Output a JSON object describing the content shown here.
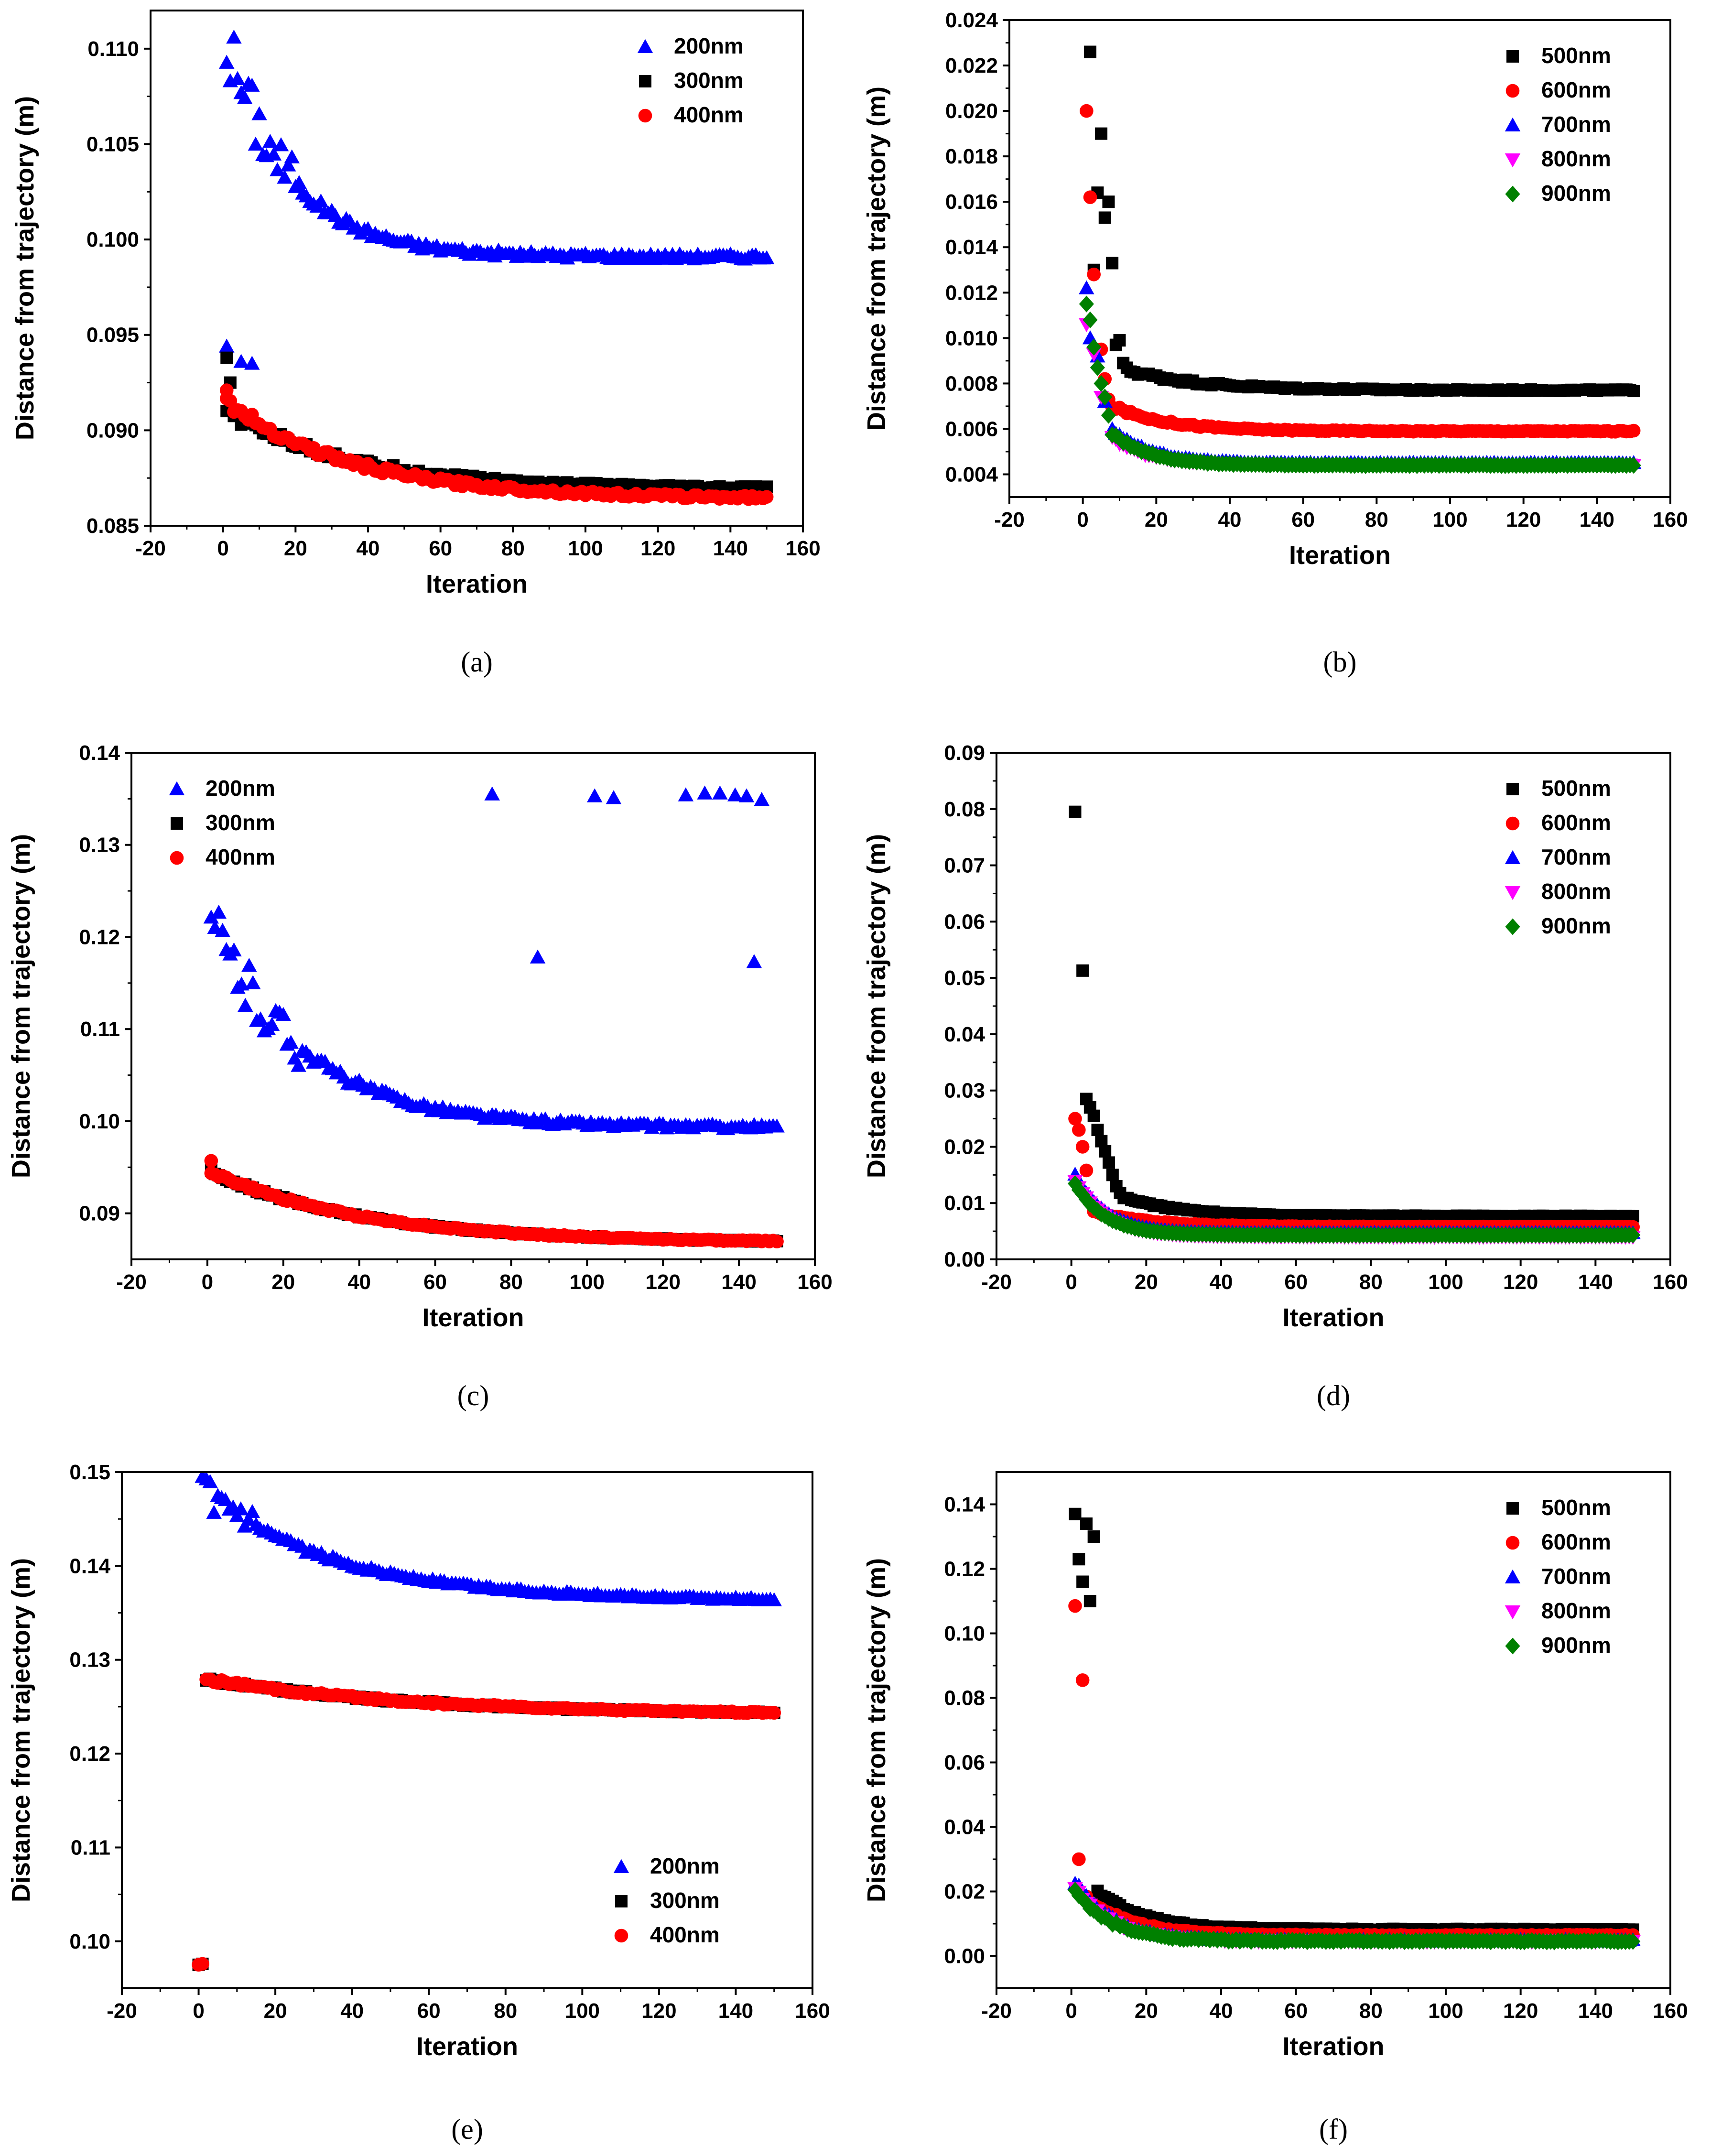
{
  "chart_data": [
    {
      "id": "a",
      "type": "scatter",
      "caption": "(a)",
      "xlabel": "Iteration",
      "ylabel": "Distance from trajectory (m)",
      "xlim": [
        -20,
        160
      ],
      "ylim": [
        0.085,
        0.112
      ],
      "xticks": [
        -20,
        0,
        20,
        40,
        60,
        80,
        100,
        120,
        140,
        160
      ],
      "yticks": [
        0.085,
        0.09,
        0.095,
        0.1,
        0.105,
        0.11
      ],
      "ytick_decimals": 3,
      "legend_position": "top-right",
      "series": [
        {
          "name": "200nm",
          "color": "#0000ff",
          "marker": "triangle-up",
          "curve": {
            "start": 0.1103,
            "end": 0.0991,
            "tau": 18,
            "jitter": 0.00035,
            "spike_until": 20
          },
          "extra_points": [
            [
              1,
              0.0944
            ],
            [
              5,
              0.0936
            ],
            [
              8,
              0.0935
            ]
          ]
        },
        {
          "name": "300nm",
          "color": "#000000",
          "marker": "square",
          "curve": {
            "start": 0.091,
            "end": 0.0869,
            "tau": 35,
            "jitter": 0.0002
          },
          "extra_points": [
            [
              1,
              0.0938
            ],
            [
              2,
              0.0925
            ]
          ]
        },
        {
          "name": "400nm",
          "color": "#ff0000",
          "marker": "circle",
          "curve": {
            "start": 0.0915,
            "end": 0.0864,
            "tau": 35,
            "jitter": 0.0002
          },
          "extra_points": [
            [
              1,
              0.0921
            ]
          ]
        }
      ]
    },
    {
      "id": "b",
      "type": "scatter",
      "caption": "(b)",
      "xlabel": "Iteration",
      "ylabel": "Distance from trajectory (m)",
      "xlim": [
        -20,
        160
      ],
      "ylim": [
        0.003,
        0.024
      ],
      "xticks": [
        -20,
        0,
        20,
        40,
        60,
        80,
        100,
        120,
        140,
        160
      ],
      "yticks": [
        0.004,
        0.006,
        0.008,
        0.01,
        0.012,
        0.014,
        0.016,
        0.018,
        0.02,
        0.022,
        0.024
      ],
      "ytick_decimals": 3,
      "legend_position": "top-right",
      "series": [
        {
          "name": "500nm",
          "color": "#000000",
          "marker": "square",
          "curve": {
            "start": 0.0086,
            "end": 0.0077,
            "tau": 20,
            "jitter": 8e-05,
            "from": 12
          },
          "extra_points": [
            [
              2,
              0.0226
            ],
            [
              3,
              0.013
            ],
            [
              4,
              0.0164
            ],
            [
              5,
              0.019
            ],
            [
              6,
              0.0153
            ],
            [
              7,
              0.016
            ],
            [
              8,
              0.0133
            ],
            [
              9,
              0.0097
            ],
            [
              10,
              0.0099
            ],
            [
              11,
              0.0089
            ]
          ]
        },
        {
          "name": "600nm",
          "color": "#ff0000",
          "marker": "circle",
          "curve": {
            "start": 0.007,
            "end": 0.0059,
            "tau": 15,
            "jitter": 6e-05,
            "from": 8
          },
          "extra_points": [
            [
              1,
              0.02
            ],
            [
              2,
              0.0162
            ],
            [
              3,
              0.0128
            ],
            [
              5,
              0.0095
            ],
            [
              6,
              0.0082
            ],
            [
              7,
              0.0073
            ]
          ]
        },
        {
          "name": "700nm",
          "color": "#0000ff",
          "marker": "triangle-up",
          "curve": {
            "start": 0.006,
            "end": 0.0045,
            "tau": 10,
            "jitter": 5e-05,
            "from": 8
          },
          "extra_points": [
            [
              1,
              0.0122
            ],
            [
              2,
              0.01
            ],
            [
              4,
              0.0092
            ],
            [
              6,
              0.0072
            ]
          ]
        },
        {
          "name": "800nm",
          "color": "#ff00ff",
          "marker": "triangle-down",
          "curve": {
            "start": 0.0056,
            "end": 0.0044,
            "tau": 10,
            "jitter": 5e-05,
            "from": 8
          },
          "extra_points": [
            [
              1,
              0.0106
            ],
            [
              3,
              0.0093
            ],
            [
              5,
              0.0074
            ]
          ]
        },
        {
          "name": "900nm",
          "color": "#008000",
          "marker": "diamond",
          "curve": {
            "start": 0.0058,
            "end": 0.0044,
            "tau": 10,
            "jitter": 5e-05,
            "from": 8
          },
          "extra_points": [
            [
              1,
              0.0115
            ],
            [
              2,
              0.0108
            ],
            [
              3,
              0.0096
            ],
            [
              4,
              0.0087
            ],
            [
              5,
              0.008
            ],
            [
              6,
              0.0074
            ],
            [
              7,
              0.0066
            ]
          ]
        }
      ]
    },
    {
      "id": "c",
      "type": "scatter",
      "caption": "(c)",
      "xlabel": "Iteration",
      "ylabel": "Distance from trajectory (m)",
      "xlim": [
        -20,
        160
      ],
      "ylim": [
        0.085,
        0.14
      ],
      "xticks": [
        -20,
        0,
        20,
        40,
        60,
        80,
        100,
        120,
        140,
        160
      ],
      "yticks": [
        0.09,
        0.1,
        0.11,
        0.12,
        0.13,
        0.14
      ],
      "ytick_decimals": 2,
      "legend_position": "top-left",
      "series": [
        {
          "name": "200nm",
          "color": "#0000ff",
          "marker": "triangle-up",
          "curve": {
            "start": 0.1215,
            "end": 0.0993,
            "tau": 25,
            "jitter": 0.0006,
            "spike_until": 25
          },
          "extra_points": [
            [
              75,
              0.1355
            ],
            [
              87,
              0.1178
            ],
            [
              102,
              0.1353
            ],
            [
              107,
              0.1351
            ],
            [
              126,
              0.1354
            ],
            [
              131,
              0.1356
            ],
            [
              135,
              0.1356
            ],
            [
              139,
              0.1354
            ],
            [
              142,
              0.1353
            ],
            [
              144,
              0.1173
            ],
            [
              146,
              0.1349
            ]
          ]
        },
        {
          "name": "300nm",
          "color": "#000000",
          "marker": "square",
          "curve": {
            "start": 0.0945,
            "end": 0.0868,
            "tau": 40,
            "jitter": 0.00015
          }
        },
        {
          "name": "400nm",
          "color": "#ff0000",
          "marker": "circle",
          "curve": {
            "start": 0.0945,
            "end": 0.0868,
            "tau": 40,
            "jitter": 0.00015
          },
          "extra_points": [
            [
              1,
              0.0957
            ]
          ]
        }
      ]
    },
    {
      "id": "d",
      "type": "scatter",
      "caption": "(d)",
      "xlabel": "Iteration",
      "ylabel": "Distance from trajectory (m)",
      "xlim": [
        -20,
        160
      ],
      "ylim": [
        0,
        0.09
      ],
      "xticks": [
        -20,
        0,
        20,
        40,
        60,
        80,
        100,
        120,
        140,
        160
      ],
      "yticks": [
        0.0,
        0.01,
        0.02,
        0.03,
        0.04,
        0.05,
        0.06,
        0.07,
        0.08,
        0.09
      ],
      "ytick_decimals": 2,
      "legend_position": "top-right",
      "series": [
        {
          "name": "500nm",
          "color": "#000000",
          "marker": "square",
          "curve": {
            "start": 0.011,
            "end": 0.0077,
            "tau": 15,
            "jitter": 0.00015,
            "from": 14
          },
          "extra_points": [
            [
              1,
              0.0795
            ],
            [
              3,
              0.0513
            ],
            [
              4,
              0.0285
            ],
            [
              5,
              0.027
            ],
            [
              6,
              0.0255
            ],
            [
              7,
              0.023
            ],
            [
              8,
              0.021
            ],
            [
              9,
              0.0192
            ],
            [
              10,
              0.0172
            ],
            [
              11,
              0.015
            ],
            [
              12,
              0.013
            ],
            [
              13,
              0.0118
            ]
          ]
        },
        {
          "name": "600nm",
          "color": "#ff0000",
          "marker": "circle",
          "curve": {
            "start": 0.0085,
            "end": 0.0058,
            "tau": 15,
            "jitter": 0.0001,
            "from": 6
          },
          "extra_points": [
            [
              1,
              0.025
            ],
            [
              2,
              0.023
            ],
            [
              3,
              0.02
            ],
            [
              4,
              0.0158
            ]
          ]
        },
        {
          "name": "700nm",
          "color": "#0000ff",
          "marker": "triangle-up",
          "curve": {
            "start": 0.015,
            "end": 0.0047,
            "tau": 8,
            "jitter": 0.0001
          }
        },
        {
          "name": "800nm",
          "color": "#ff00ff",
          "marker": "triangle-down",
          "curve": {
            "start": 0.014,
            "end": 0.004,
            "tau": 8,
            "jitter": 0.0001
          }
        },
        {
          "name": "900nm",
          "color": "#008000",
          "marker": "diamond",
          "curve": {
            "start": 0.0135,
            "end": 0.0043,
            "tau": 8,
            "jitter": 0.0001
          }
        }
      ]
    },
    {
      "id": "e",
      "type": "scatter",
      "caption": "(e)",
      "xlabel": "Iteration",
      "ylabel": "Distance from trajectory (m)",
      "xlim": [
        -20,
        160
      ],
      "ylim": [
        0.095,
        0.15
      ],
      "xticks": [
        -20,
        0,
        20,
        40,
        60,
        80,
        100,
        120,
        140,
        160
      ],
      "yticks": [
        0.1,
        0.11,
        0.12,
        0.13,
        0.14,
        0.15
      ],
      "ytick_decimals": 2,
      "legend_position": "lower-right",
      "series": [
        {
          "name": "200nm",
          "color": "#0000ff",
          "marker": "triangle-up",
          "curve": {
            "start": 0.148,
            "end": 0.1363,
            "tau": 35,
            "jitter": 0.0003,
            "spike_until": 15
          }
        },
        {
          "name": "300nm",
          "color": "#000000",
          "marker": "square",
          "curve": {
            "start": 0.1279,
            "end": 0.1241,
            "tau": 55,
            "jitter": 0.00015,
            "from": 2
          },
          "extra_points": [
            [
              0,
              0.0975
            ],
            [
              1,
              0.0976
            ]
          ]
        },
        {
          "name": "400nm",
          "color": "#ff0000",
          "marker": "circle",
          "curve": {
            "start": 0.1279,
            "end": 0.1241,
            "tau": 55,
            "jitter": 0.00015,
            "from": 2
          },
          "extra_points": [
            [
              0,
              0.0975
            ],
            [
              1,
              0.0976
            ]
          ]
        }
      ]
    },
    {
      "id": "f",
      "type": "scatter",
      "caption": "(f)",
      "xlabel": "Iteration",
      "ylabel": "Distance from trajectory (m)",
      "xlim": [
        -20,
        160
      ],
      "ylim": [
        -0.01,
        0.15
      ],
      "xticks": [
        -20,
        0,
        20,
        40,
        60,
        80,
        100,
        120,
        140,
        160
      ],
      "yticks": [
        0.0,
        0.02,
        0.04,
        0.06,
        0.08,
        0.1,
        0.12,
        0.14
      ],
      "ytick_decimals": 2,
      "legend_position": "top-right",
      "series": [
        {
          "name": "500nm",
          "color": "#000000",
          "marker": "square",
          "curve": {
            "start": 0.02,
            "end": 0.0082,
            "tau": 12,
            "jitter": 0.0005,
            "from": 7
          },
          "extra_points": [
            [
              1,
              0.137
            ],
            [
              2,
              0.123
            ],
            [
              3,
              0.116
            ],
            [
              4,
              0.134
            ],
            [
              5,
              0.11
            ],
            [
              6,
              0.13
            ]
          ]
        },
        {
          "name": "600nm",
          "color": "#ff0000",
          "marker": "circle",
          "curve": {
            "start": 0.018,
            "end": 0.0064,
            "tau": 12,
            "jitter": 0.0004,
            "from": 4
          },
          "extra_points": [
            [
              1,
              0.1085
            ],
            [
              2,
              0.03
            ],
            [
              3,
              0.0855
            ]
          ]
        },
        {
          "name": "700nm",
          "color": "#0000ff",
          "marker": "triangle-up",
          "curve": {
            "start": 0.023,
            "end": 0.0048,
            "tau": 10,
            "jitter": 0.0006
          }
        },
        {
          "name": "800nm",
          "color": "#ff00ff",
          "marker": "triangle-down",
          "curve": {
            "start": 0.021,
            "end": 0.0045,
            "tau": 10,
            "jitter": 0.0006
          }
        },
        {
          "name": "900nm",
          "color": "#008000",
          "marker": "diamond",
          "curve": {
            "start": 0.02,
            "end": 0.0046,
            "tau": 10,
            "jitter": 0.0006
          }
        }
      ]
    }
  ]
}
